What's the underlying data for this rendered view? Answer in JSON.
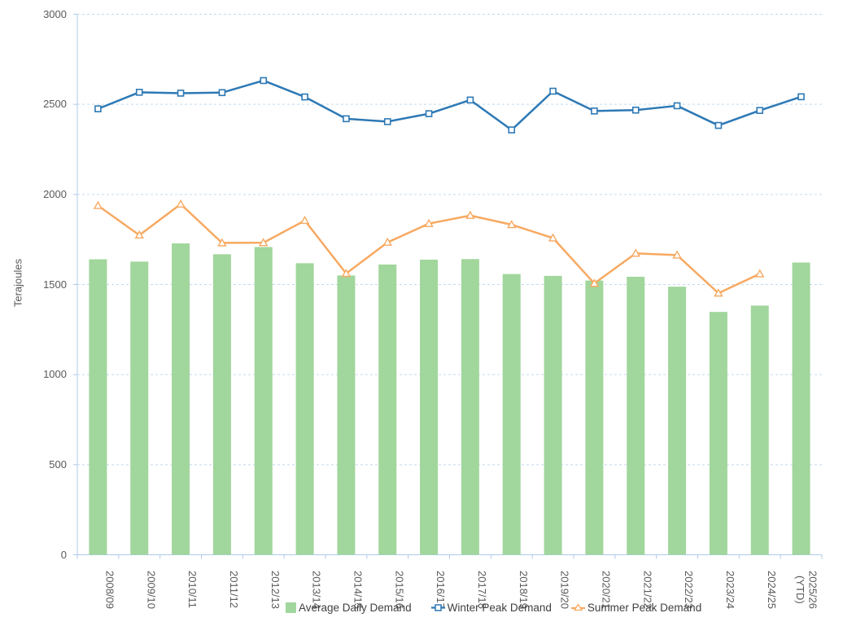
{
  "chart_data": {
    "type": "combo (bar + line)",
    "title": "",
    "xlabel": "",
    "ylabel": "Terajoules",
    "ylim": [
      0,
      3000
    ],
    "ytick_interval": 500,
    "yticks": [
      0,
      500,
      1000,
      1500,
      2000,
      2500,
      3000
    ],
    "grid": "horizontal dashed",
    "legend_position": "bottom",
    "categories": [
      "2008/09",
      "2009/10",
      "2010/11",
      "2011/12",
      "2012/13",
      "2013/14",
      "2014/15",
      "2015/16",
      "2016/17",
      "2017/18",
      "2018/19",
      "2019/20",
      "2020/21",
      "2021/22",
      "2022/23",
      "2023/24",
      "2024/25",
      "2025/26 (YTD)"
    ],
    "series": [
      {
        "name": "Average Daily Demand",
        "type": "bar",
        "color": "#A1D69C",
        "values": [
          1640,
          1627,
          1728,
          1668,
          1708,
          1618,
          1550,
          1611,
          1638,
          1641,
          1558,
          1548,
          1522,
          1543,
          1488,
          1348,
          1383,
          1622
        ]
      },
      {
        "name": "Winter Peak Demand",
        "type": "line",
        "marker": "square",
        "color": "#2E79B5",
        "values": [
          2475,
          2567,
          2562,
          2565,
          2632,
          2541,
          2420,
          2404,
          2448,
          2524,
          2358,
          2573,
          2463,
          2468,
          2492,
          2383,
          2466,
          2542
        ]
      },
      {
        "name": "Summer Peak Demand",
        "type": "line",
        "marker": "triangle",
        "color": "#F7A961",
        "values": [
          1938,
          1774,
          1946,
          1731,
          1732,
          1855,
          1561,
          1734,
          1838,
          1883,
          1832,
          1758,
          1506,
          1673,
          1663,
          1452,
          1559,
          null
        ]
      }
    ],
    "style": {
      "gridline_color": "#C3D9EE",
      "axis_color": "#AECBEB",
      "text_color": "#595959"
    }
  }
}
